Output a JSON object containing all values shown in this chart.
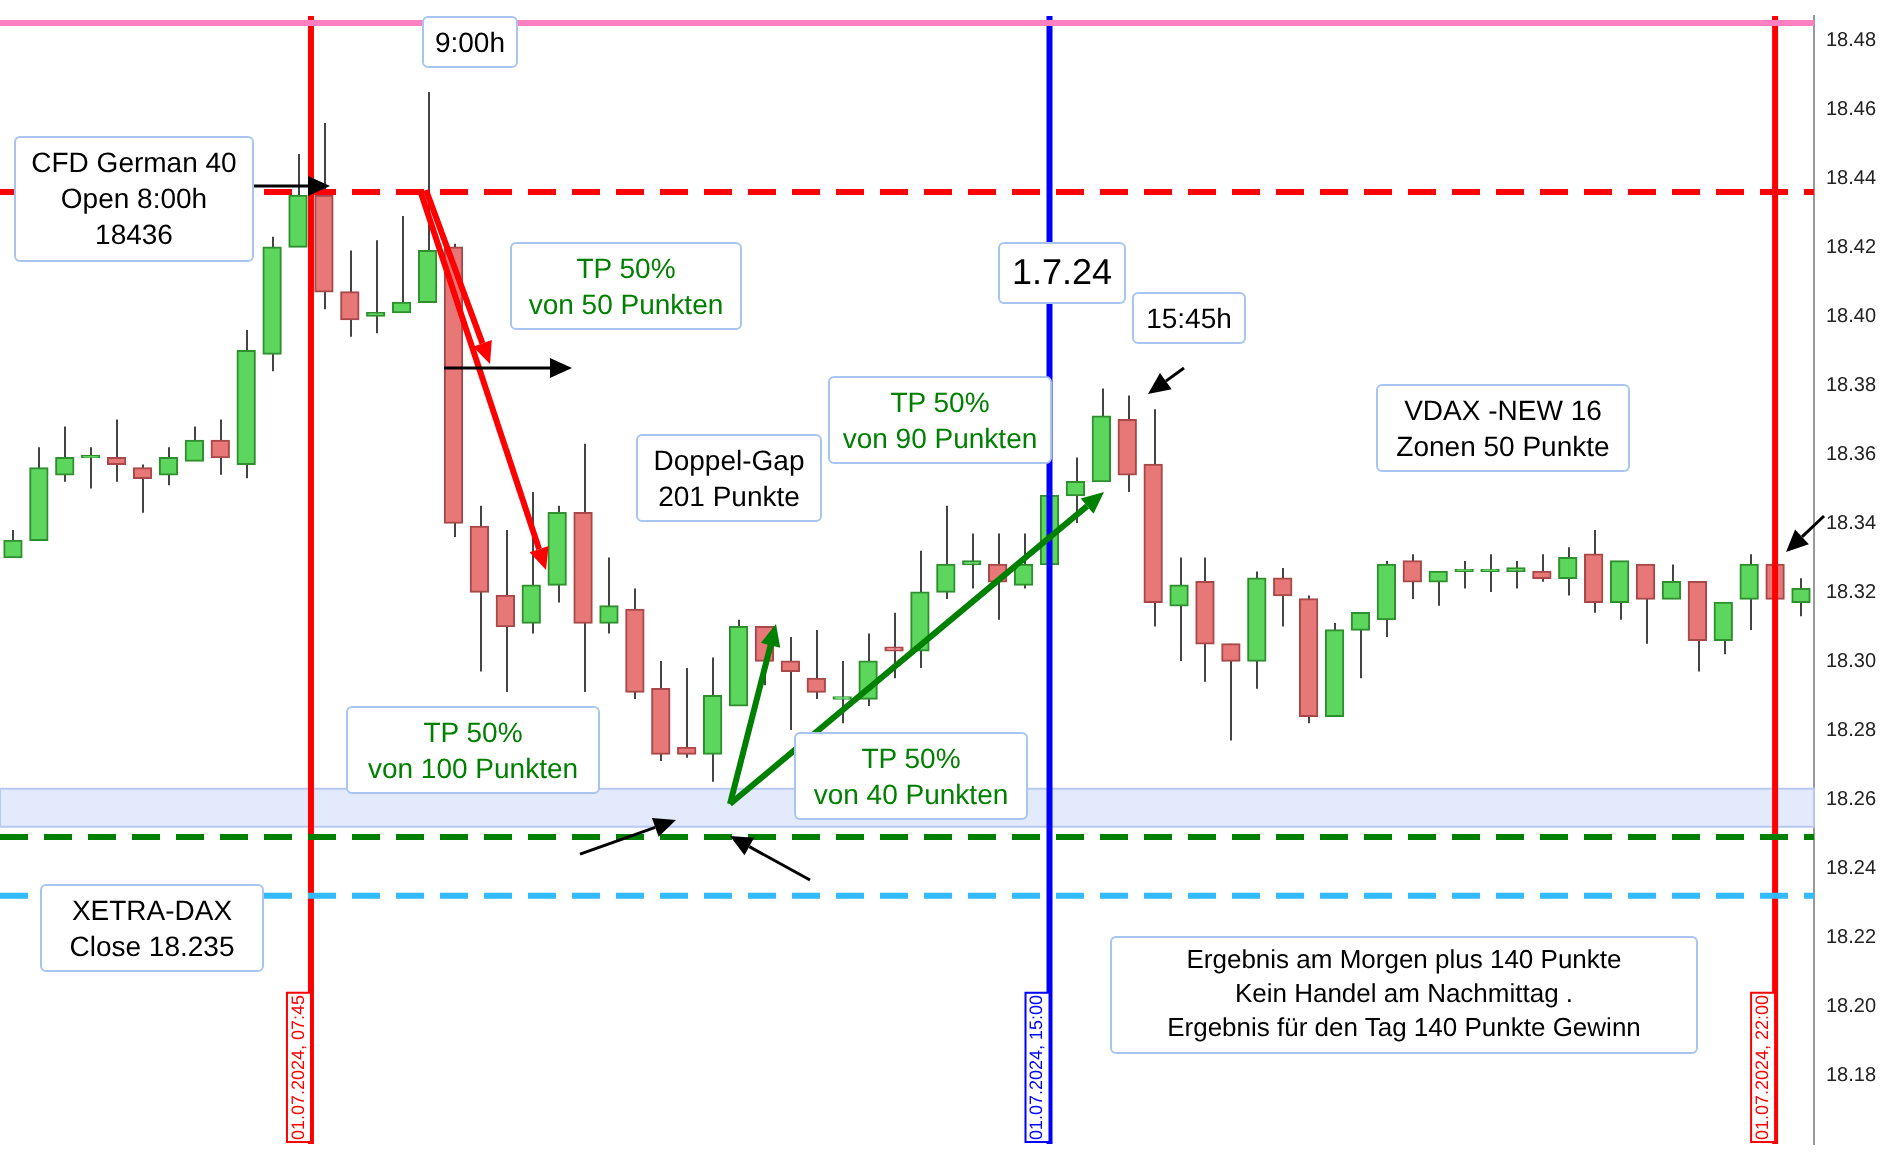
{
  "chart_data": {
    "type": "candlestick",
    "categories": [
      null,
      null,
      null,
      null,
      null,
      null,
      null,
      null,
      null,
      null,
      null,
      null,
      null,
      null,
      null,
      null,
      null,
      null,
      null,
      null,
      null,
      null,
      null,
      null,
      null,
      null,
      null,
      null,
      null,
      null,
      null,
      null,
      null,
      null,
      null,
      null,
      null,
      null,
      null,
      null,
      null,
      null,
      null,
      null,
      null,
      null,
      null,
      null,
      null,
      null,
      null,
      null,
      null,
      null,
      null,
      null,
      null,
      null,
      null,
      null,
      null,
      null,
      null,
      null,
      null,
      null,
      null,
      null,
      null,
      null
    ],
    "ohlc": [
      [
        18.33,
        18.338,
        18.33,
        18.335
      ],
      [
        18.335,
        18.362,
        18.335,
        18.356
      ],
      [
        18.354,
        18.368,
        18.352,
        18.359
      ],
      [
        18.359,
        18.362,
        18.35,
        18.359
      ],
      [
        18.359,
        18.37,
        18.352,
        18.357
      ],
      [
        18.356,
        18.357,
        18.343,
        18.353
      ],
      [
        18.354,
        18.362,
        18.351,
        18.359
      ],
      [
        18.358,
        18.368,
        18.358,
        18.364
      ],
      [
        18.364,
        18.37,
        18.354,
        18.359
      ],
      [
        18.357,
        18.396,
        18.353,
        18.39
      ],
      [
        18.389,
        18.423,
        18.384,
        18.42
      ],
      [
        18.42,
        18.447,
        18.42,
        18.435
      ],
      [
        18.435,
        18.456,
        18.402,
        18.407
      ],
      [
        18.407,
        18.419,
        18.394,
        18.399
      ],
      [
        18.4,
        18.422,
        18.395,
        18.401
      ],
      [
        18.401,
        18.429,
        18.401,
        18.404
      ],
      [
        18.404,
        18.465,
        18.404,
        18.419
      ],
      [
        18.42,
        18.421,
        18.336,
        18.34
      ],
      [
        18.339,
        18.345,
        18.297,
        18.32
      ],
      [
        18.319,
        18.338,
        18.291,
        18.31
      ],
      [
        18.311,
        18.349,
        18.308,
        18.322
      ],
      [
        18.322,
        18.345,
        18.317,
        18.343
      ],
      [
        18.343,
        18.363,
        18.291,
        18.311
      ],
      [
        18.311,
        18.33,
        18.308,
        18.316
      ],
      [
        18.315,
        18.321,
        18.289,
        18.291
      ],
      [
        18.292,
        18.3,
        18.271,
        18.273
      ],
      [
        18.275,
        18.298,
        18.272,
        18.273
      ],
      [
        18.273,
        18.301,
        18.265,
        18.29
      ],
      [
        18.287,
        18.312,
        18.287,
        18.31
      ],
      [
        18.31,
        18.31,
        18.293,
        18.3
      ],
      [
        18.3,
        18.307,
        18.28,
        18.297
      ],
      [
        18.295,
        18.309,
        18.289,
        18.291
      ],
      [
        18.289,
        18.3,
        18.282,
        18.289
      ],
      [
        18.289,
        18.308,
        18.287,
        18.3
      ],
      [
        18.304,
        18.314,
        18.295,
        18.303
      ],
      [
        18.303,
        18.332,
        18.298,
        18.32
      ],
      [
        18.32,
        18.345,
        18.318,
        18.328
      ],
      [
        18.328,
        18.337,
        18.321,
        18.329
      ],
      [
        18.328,
        18.337,
        18.312,
        18.323
      ],
      [
        18.322,
        18.337,
        18.321,
        18.328
      ],
      [
        18.328,
        18.348,
        18.328,
        18.348
      ],
      [
        18.348,
        18.359,
        18.34,
        18.352
      ],
      [
        18.352,
        18.379,
        18.352,
        18.371
      ],
      [
        18.37,
        18.377,
        18.349,
        18.354
      ],
      [
        18.357,
        18.373,
        18.31,
        18.317
      ],
      [
        18.316,
        18.33,
        18.3,
        18.322
      ],
      [
        18.323,
        18.33,
        18.294,
        18.305
      ],
      [
        18.305,
        18.305,
        18.277,
        18.3
      ],
      [
        18.3,
        18.326,
        18.292,
        18.324
      ],
      [
        18.324,
        18.327,
        18.31,
        18.319
      ],
      [
        18.318,
        18.319,
        18.282,
        18.284
      ],
      [
        18.284,
        18.311,
        18.284,
        18.309
      ],
      [
        18.309,
        18.314,
        18.295,
        18.314
      ],
      [
        18.312,
        18.329,
        18.307,
        18.328
      ],
      [
        18.329,
        18.331,
        18.318,
        18.323
      ],
      [
        18.323,
        18.326,
        18.316,
        18.326
      ],
      [
        18.326,
        18.329,
        18.321,
        18.326
      ],
      [
        18.326,
        18.331,
        18.32,
        18.326
      ],
      [
        18.326,
        18.329,
        18.321,
        18.327
      ],
      [
        18.326,
        18.331,
        18.323,
        18.324
      ],
      [
        18.324,
        18.333,
        18.319,
        18.33
      ],
      [
        18.331,
        18.338,
        18.314,
        18.317
      ],
      [
        18.317,
        18.329,
        18.312,
        18.329
      ],
      [
        18.328,
        18.328,
        18.305,
        18.318
      ],
      [
        18.318,
        18.328,
        18.318,
        18.323
      ],
      [
        18.323,
        18.323,
        18.297,
        18.306
      ],
      [
        18.306,
        18.317,
        18.302,
        18.317
      ],
      [
        18.318,
        18.331,
        18.309,
        18.328
      ],
      [
        18.328,
        18.328,
        18.318,
        18.318
      ],
      [
        18.317,
        18.324,
        18.313,
        18.321
      ]
    ],
    "ylim": [
      18.16,
      18.487
    ],
    "yticks": [
      {
        "value": 18.18,
        "label": "18.18"
      },
      {
        "value": 18.2,
        "label": "18.20"
      },
      {
        "value": 18.22,
        "label": "18.22"
      },
      {
        "value": 18.24,
        "label": "18.24"
      },
      {
        "value": 18.26,
        "label": "18.26"
      },
      {
        "value": 18.28,
        "label": "18.28"
      },
      {
        "value": 18.3,
        "label": "18.30"
      },
      {
        "value": 18.32,
        "label": "18.32"
      },
      {
        "value": 18.34,
        "label": "18.34"
      },
      {
        "value": 18.36,
        "label": "18.36"
      },
      {
        "value": 18.38,
        "label": "18.38"
      },
      {
        "value": 18.4,
        "label": "18.40"
      },
      {
        "value": 18.42,
        "label": "18.42"
      },
      {
        "value": 18.44,
        "label": "18.44"
      },
      {
        "value": 18.46,
        "label": "18.46"
      },
      {
        "value": 18.48,
        "label": "18.48"
      }
    ],
    "tick_labels": "y",
    "grid": false,
    "legend": false,
    "ref_lines": [
      {
        "axis": "x",
        "label": "01.07.2024, 07:45",
        "color": "#ff0000"
      },
      {
        "axis": "x",
        "label": "01.07.2024, 15:00",
        "color": "#0000ff"
      },
      {
        "axis": "x",
        "label": "01.07.2024, 22:00",
        "color": "#ff0000"
      },
      {
        "axis": "y",
        "value": 18.485,
        "color": "#ff80c0",
        "line_style": "solid"
      },
      {
        "axis": "y",
        "value": 18.436,
        "color": "#ff0000",
        "line_style": "dashed"
      },
      {
        "axis": "y",
        "value": 18.249,
        "color": "#008000",
        "line_style": "dashed"
      },
      {
        "axis": "y",
        "value": 18.232,
        "color": "#33bbff",
        "line_style": "dashed"
      }
    ],
    "bands": [
      {
        "axis": "y",
        "from": 18.252,
        "to": 18.263,
        "color": "#e3eafc"
      }
    ],
    "annotations": [
      "9:00h",
      "CFD German 40\nOpen 8:00h\n18436",
      "TP 50%\nvon 50 Punkten",
      "1.7.24",
      "15:45h",
      "Doppel-Gap\n201 Punkte",
      "TP 50%\nvon 90 Punkten",
      "VDAX -NEW 16\nZonen 50 Punkte",
      "TP 50%\nvon 100 Punkten",
      "TP 50%\nvon 40 Punkten",
      "XETRA-DAX\nClose 18.235",
      "Ergebnis am Morgen plus 140 Punkte\nKein Handel  am Nachmittag .\nErgebnis für den Tag 140 Punkte Gewinn"
    ]
  }
}
